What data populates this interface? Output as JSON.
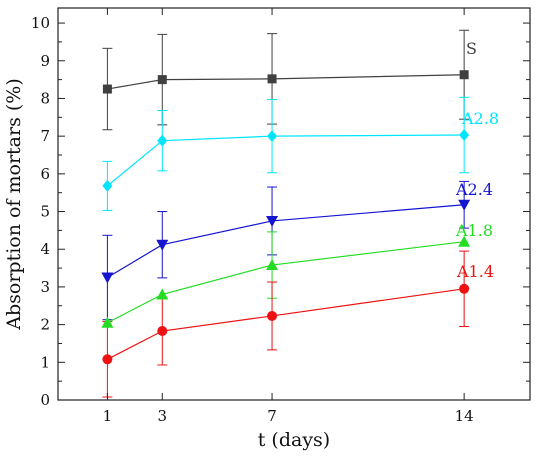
{
  "chart_data": {
    "type": "line",
    "xlabel": "t (days)",
    "ylabel": "Absorption of mortars (%)",
    "x_ticks": [
      1,
      3,
      7,
      14
    ],
    "y_ticks": [
      0,
      1,
      2,
      3,
      4,
      5,
      6,
      7,
      8,
      9,
      10
    ],
    "y_tick_labels": [
      "0",
      "1",
      "2",
      "3",
      "4",
      "5",
      "6",
      "7",
      "8",
      "9",
      "10"
    ],
    "xlim": [
      -0.8,
      16.4
    ],
    "ylim": [
      0,
      10.4
    ],
    "grid": false,
    "legend": "inline labels at right",
    "x": [
      1,
      3,
      7,
      14
    ],
    "series": [
      {
        "name": "S",
        "color": "#404040",
        "marker": "square",
        "values": [
          8.25,
          8.5,
          8.52,
          8.63
        ],
        "errors": [
          1.08,
          1.2,
          1.2,
          1.18
        ]
      },
      {
        "name": "A2.8",
        "color": "#00e5ff",
        "marker": "diamond",
        "values": [
          5.68,
          6.88,
          7.0,
          7.03
        ],
        "errors": [
          0.65,
          0.8,
          0.97,
          1.0
        ]
      },
      {
        "name": "A2.4",
        "color": "#1515d0",
        "marker": "triangle-down",
        "values": [
          3.25,
          4.12,
          4.75,
          5.18
        ],
        "errors": [
          1.12,
          0.88,
          0.9,
          0.62
        ]
      },
      {
        "name": "A1.8",
        "color": "#22dd22",
        "marker": "triangle-up",
        "values": [
          2.05,
          2.8,
          3.58,
          4.2
        ],
        "errors": [
          0.0,
          0.0,
          0.88,
          0.0
        ]
      },
      {
        "name": "A1.4",
        "color": "#ee1111",
        "marker": "circle",
        "values": [
          1.08,
          1.83,
          2.23,
          2.95
        ],
        "errors": [
          1.0,
          0.9,
          0.9,
          1.0
        ]
      }
    ]
  }
}
